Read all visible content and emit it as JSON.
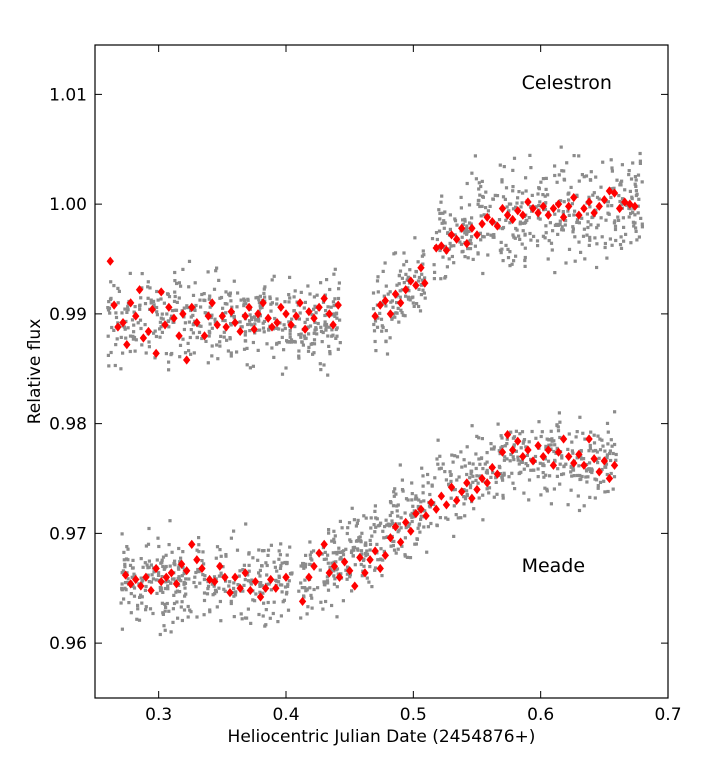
{
  "chart_data": {
    "type": "scatter",
    "title": "",
    "xlabel": "Heliocentric Julian Date (2454876+)",
    "ylabel": "Relative flux",
    "xlim": [
      0.25,
      0.7
    ],
    "ylim": [
      0.955,
      1.0145
    ],
    "grid": false,
    "x_ticks": [
      0.3,
      0.4,
      0.5,
      0.6,
      0.7
    ],
    "x_tick_labels": [
      "0.3",
      "0.4",
      "0.5",
      "0.6",
      "0.7"
    ],
    "y_ticks": [
      0.96,
      0.97,
      0.98,
      0.99,
      1.0,
      1.01
    ],
    "y_tick_labels": [
      "0.96",
      "0.97",
      "0.98",
      "0.99",
      "1.00",
      "1.01"
    ],
    "annotations": [
      {
        "text": "Celestron",
        "x": 0.585,
        "y": 1.0105
      },
      {
        "text": "Meade",
        "x": 0.585,
        "y": 0.9665
      }
    ],
    "colors": {
      "raw": "#8c8c8c",
      "binned": "#ff0000"
    },
    "series": [
      {
        "role": "raw",
        "marker": "square",
        "color": "#8c8c8c",
        "segments": [
          {
            "x0": 0.26,
            "x1": 0.443,
            "y": 0.9895,
            "noise": 0.0032
          },
          {
            "x0": 0.468,
            "x1": 0.51,
            "y0": 0.989,
            "y1": 0.9935,
            "noise": 0.003
          },
          {
            "x0": 0.515,
            "x1": 0.545,
            "y0": 0.996,
            "y1": 0.9985,
            "noise": 0.003
          },
          {
            "x0": 0.545,
            "x1": 0.68,
            "y0": 0.9985,
            "y1": 1.0002,
            "noise": 0.0038
          },
          {
            "x0": 0.27,
            "x1": 0.405,
            "y": 0.9657,
            "noise": 0.003
          },
          {
            "x0": 0.41,
            "x1": 0.57,
            "y0": 0.965,
            "y1": 0.977,
            "noise": 0.003
          },
          {
            "x0": 0.57,
            "x1": 0.66,
            "y": 0.9768,
            "noise": 0.003
          }
        ]
      },
      {
        "role": "binned-celestron",
        "marker": "diamond",
        "color": "#ff0000",
        "x": [
          0.262,
          0.265,
          0.268,
          0.272,
          0.275,
          0.278,
          0.282,
          0.285,
          0.288,
          0.292,
          0.295,
          0.298,
          0.302,
          0.305,
          0.308,
          0.312,
          0.316,
          0.319,
          0.322,
          0.326,
          0.33,
          0.336,
          0.339,
          0.342,
          0.346,
          0.35,
          0.353,
          0.357,
          0.36,
          0.364,
          0.368,
          0.371,
          0.375,
          0.378,
          0.382,
          0.386,
          0.389,
          0.393,
          0.396,
          0.4,
          0.404,
          0.408,
          0.411,
          0.415,
          0.418,
          0.422,
          0.426,
          0.43,
          0.434,
          0.437,
          0.441,
          0.47,
          0.474,
          0.478,
          0.482,
          0.486,
          0.49,
          0.494,
          0.498,
          0.502,
          0.506,
          0.509,
          0.518,
          0.522,
          0.526,
          0.53,
          0.534,
          0.538,
          0.542,
          0.546,
          0.55,
          0.554,
          0.558,
          0.562,
          0.566,
          0.57,
          0.574,
          0.578,
          0.582,
          0.586,
          0.59,
          0.594,
          0.598,
          0.602,
          0.606,
          0.61,
          0.614,
          0.618,
          0.622,
          0.626,
          0.63,
          0.634,
          0.638,
          0.642,
          0.646,
          0.65,
          0.654,
          0.658,
          0.662,
          0.666,
          0.67,
          0.674
        ],
        "y": [
          0.9948,
          0.9908,
          0.9888,
          0.9892,
          0.9872,
          0.991,
          0.9898,
          0.9922,
          0.9878,
          0.9884,
          0.9904,
          0.9864,
          0.992,
          0.989,
          0.9906,
          0.9896,
          0.988,
          0.99,
          0.9858,
          0.9906,
          0.9892,
          0.988,
          0.9898,
          0.991,
          0.989,
          0.9898,
          0.9888,
          0.9902,
          0.9892,
          0.9884,
          0.9898,
          0.9906,
          0.9886,
          0.99,
          0.991,
          0.9896,
          0.9888,
          0.9892,
          0.9906,
          0.99,
          0.989,
          0.9898,
          0.991,
          0.9886,
          0.9902,
          0.9896,
          0.9906,
          0.9914,
          0.99,
          0.989,
          0.9908,
          0.9898,
          0.9908,
          0.9912,
          0.99,
          0.9918,
          0.991,
          0.9922,
          0.993,
          0.9926,
          0.9942,
          0.9928,
          0.996,
          0.9962,
          0.9958,
          0.9972,
          0.9968,
          0.9978,
          0.9964,
          0.9978,
          0.9972,
          0.9982,
          0.9988,
          0.9984,
          0.998,
          0.9996,
          0.999,
          0.9986,
          0.9994,
          0.999,
          1.0002,
          0.9996,
          0.9992,
          0.9998,
          0.999,
          0.9996,
          1.0,
          0.9988,
          0.9998,
          1.0006,
          0.999,
          0.9996,
          1.0002,
          0.9992,
          0.9998,
          1.0004,
          1.0012,
          1.001,
          0.9996,
          1.0002,
          1.0,
          0.9998
        ]
      },
      {
        "role": "binned-meade",
        "marker": "diamond",
        "color": "#ff0000",
        "x": [
          0.274,
          0.278,
          0.282,
          0.286,
          0.29,
          0.294,
          0.298,
          0.302,
          0.306,
          0.31,
          0.314,
          0.318,
          0.322,
          0.326,
          0.33,
          0.334,
          0.34,
          0.344,
          0.348,
          0.352,
          0.356,
          0.36,
          0.364,
          0.368,
          0.372,
          0.376,
          0.38,
          0.384,
          0.388,
          0.392,
          0.4,
          0.413,
          0.418,
          0.422,
          0.426,
          0.43,
          0.434,
          0.438,
          0.442,
          0.446,
          0.45,
          0.454,
          0.458,
          0.462,
          0.466,
          0.47,
          0.474,
          0.478,
          0.482,
          0.486,
          0.49,
          0.494,
          0.498,
          0.502,
          0.506,
          0.51,
          0.514,
          0.518,
          0.522,
          0.526,
          0.53,
          0.534,
          0.538,
          0.542,
          0.546,
          0.55,
          0.554,
          0.558,
          0.562,
          0.566,
          0.57,
          0.574,
          0.578,
          0.582,
          0.586,
          0.59,
          0.594,
          0.598,
          0.602,
          0.606,
          0.61,
          0.614,
          0.618,
          0.622,
          0.626,
          0.63,
          0.634,
          0.638,
          0.642,
          0.646,
          0.65,
          0.654,
          0.658
        ],
        "y": [
          0.9662,
          0.9654,
          0.9658,
          0.9652,
          0.966,
          0.9648,
          0.9668,
          0.9656,
          0.966,
          0.9664,
          0.9654,
          0.9672,
          0.9666,
          0.969,
          0.9676,
          0.9668,
          0.9658,
          0.9656,
          0.967,
          0.966,
          0.9646,
          0.966,
          0.965,
          0.9664,
          0.9648,
          0.9656,
          0.9642,
          0.965,
          0.9658,
          0.965,
          0.966,
          0.9638,
          0.966,
          0.967,
          0.9682,
          0.969,
          0.9664,
          0.967,
          0.966,
          0.9674,
          0.9666,
          0.9652,
          0.9678,
          0.9664,
          0.9676,
          0.9684,
          0.9668,
          0.968,
          0.9696,
          0.9706,
          0.9692,
          0.971,
          0.9702,
          0.9718,
          0.9722,
          0.9716,
          0.9728,
          0.9722,
          0.9734,
          0.9726,
          0.9742,
          0.973,
          0.9738,
          0.9746,
          0.9732,
          0.974,
          0.975,
          0.9746,
          0.976,
          0.9754,
          0.9774,
          0.979,
          0.9776,
          0.9784,
          0.977,
          0.9776,
          0.9766,
          0.978,
          0.977,
          0.9776,
          0.9762,
          0.9774,
          0.9786,
          0.977,
          0.9764,
          0.9772,
          0.9762,
          0.9786,
          0.9768,
          0.9756,
          0.9766,
          0.975,
          0.9762
        ]
      }
    ]
  }
}
